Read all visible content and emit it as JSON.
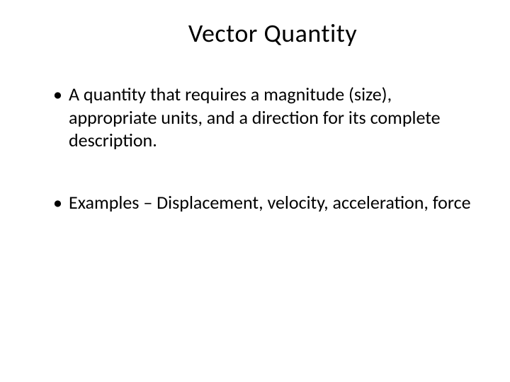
{
  "slide": {
    "title": "Vector Quantity",
    "bullets": [
      "A quantity that requires a magnitude (size), appropriate units, and a direction for its complete description.",
      "Examples – Displacement, velocity, acceleration, force"
    ],
    "background_color": "#ffffff",
    "text_color": "#000000",
    "title_fontsize": 36,
    "body_fontsize": 26,
    "font_family": "Calibri"
  }
}
